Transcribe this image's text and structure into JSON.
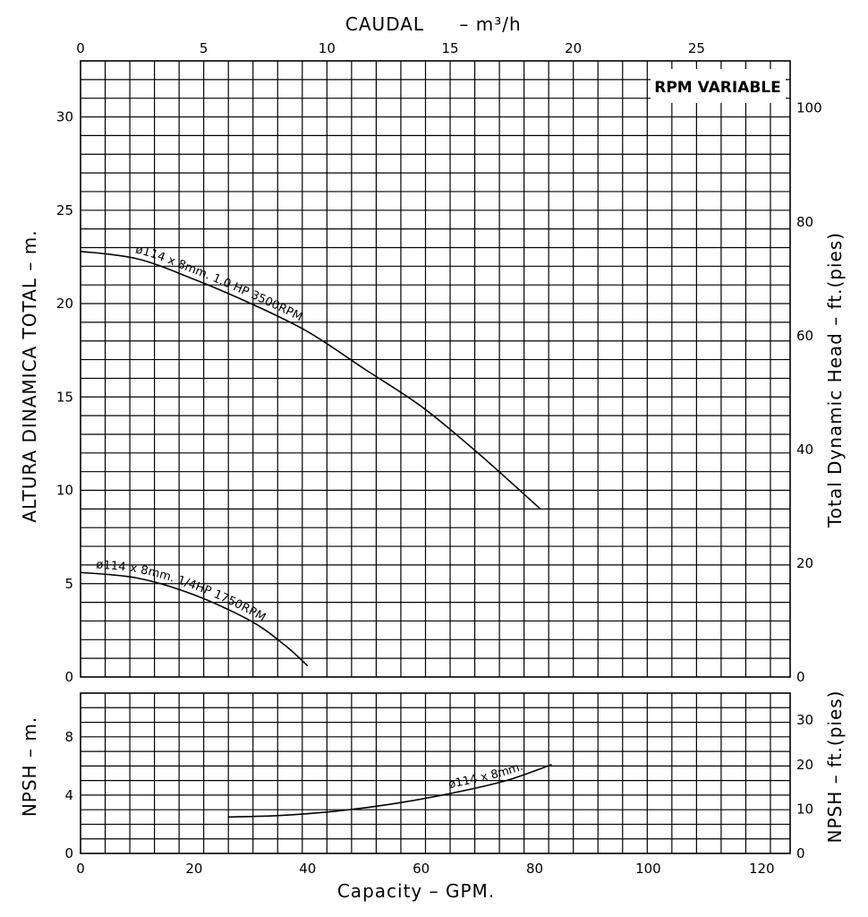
{
  "chart_data": {
    "type": "line",
    "badge": "RPM VARIABLE",
    "top_axis": {
      "label": "CAUDAL",
      "unit": "– m³/h",
      "range": [
        0,
        28.8
      ],
      "ticks": [
        0,
        5,
        10,
        15,
        20,
        25
      ]
    },
    "bottom_axis": {
      "label": "Capacity – GPM.",
      "range": [
        0,
        125
      ],
      "ticks": [
        0,
        20,
        40,
        60,
        80,
        100,
        120
      ]
    },
    "head_panel": {
      "left_axis": {
        "label": "ALTURA DINAMICA TOTAL – m.",
        "range": [
          0,
          33
        ],
        "ticks": [
          0,
          5,
          10,
          15,
          20,
          25,
          30
        ]
      },
      "right_axis": {
        "label": "Total Dynamic Head – ft.(pies)",
        "range": [
          0,
          108.3
        ],
        "ticks": [
          0,
          20,
          40,
          60,
          80,
          100
        ]
      },
      "series": [
        {
          "name": "ø114 x 8mm. 1.0 HP 3500RPM",
          "x_gpm": [
            0,
            10,
            20,
            30,
            40,
            50,
            60,
            70,
            81
          ],
          "y_m": [
            22.8,
            22.4,
            21.3,
            20.0,
            18.5,
            16.5,
            14.5,
            12.0,
            9.0
          ]
        },
        {
          "name": "ø114 x 8mm. 1/4HP 1750RPM",
          "x_gpm": [
            0,
            10,
            20,
            30,
            36,
            40
          ],
          "y_m": [
            5.6,
            5.3,
            4.4,
            3.0,
            1.7,
            0.6
          ]
        }
      ]
    },
    "npsh_panel": {
      "left_axis": {
        "label": "NPSH – m.",
        "range": [
          0,
          11
        ],
        "ticks": [
          0,
          4,
          8
        ]
      },
      "right_axis": {
        "label": "NPSH – ft.(pies)",
        "range": [
          0,
          36.1
        ],
        "ticks": [
          0,
          10,
          20,
          30
        ]
      },
      "series": [
        {
          "name": "ø114 x 8mm.",
          "x_gpm": [
            26,
            35,
            45,
            55,
            65,
            75,
            83
          ],
          "y_m": [
            2.5,
            2.6,
            2.9,
            3.4,
            4.1,
            5.0,
            6.1
          ]
        }
      ]
    }
  }
}
